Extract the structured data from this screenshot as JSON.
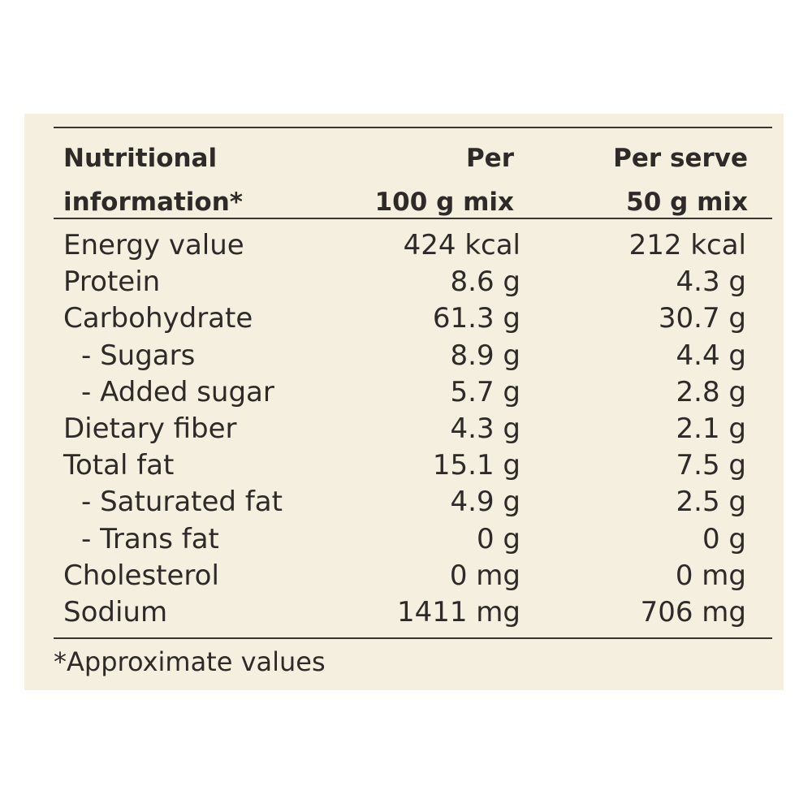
{
  "header": {
    "col1_line1": "Nutritional",
    "col1_line2": "information*",
    "col2_line1": "Per",
    "col2_line2": "100 g mix",
    "col3_line1": "Per serve",
    "col3_line2": "50 g mix"
  },
  "rows": [
    {
      "name": "Energy value",
      "per100": "424 kcal",
      "perServe": "212 kcal"
    },
    {
      "name": "Protein",
      "per100": "8.6 g",
      "perServe": "4.3 g"
    },
    {
      "name": "Carbohydrate",
      "per100": "61.3 g",
      "perServe": "30.7 g"
    },
    {
      "name": "- Sugars",
      "per100": "8.9 g",
      "perServe": "4.4 g"
    },
    {
      "name": "- Added sugar",
      "per100": "5.7 g",
      "perServe": "2.8 g"
    },
    {
      "name": "Dietary fiber",
      "per100": "4.3 g",
      "perServe": "2.1 g"
    },
    {
      "name": "Total fat",
      "per100": "15.1 g",
      "perServe": "7.5 g"
    },
    {
      "name": "- Saturated fat",
      "per100": "4.9 g",
      "perServe": "2.5 g"
    },
    {
      "name": "- Trans fat",
      "per100": "0 g",
      "perServe": "0 g"
    },
    {
      "name": "Cholesterol",
      "per100": "0 mg",
      "perServe": "0 mg"
    },
    {
      "name": "Sodium",
      "per100": "1411 mg",
      "perServe": "706 mg"
    }
  ],
  "footnote": "*Approximate values",
  "colors": {
    "background": "#f4efdf",
    "text": "#2e2a27",
    "rule": "#3a3430"
  }
}
